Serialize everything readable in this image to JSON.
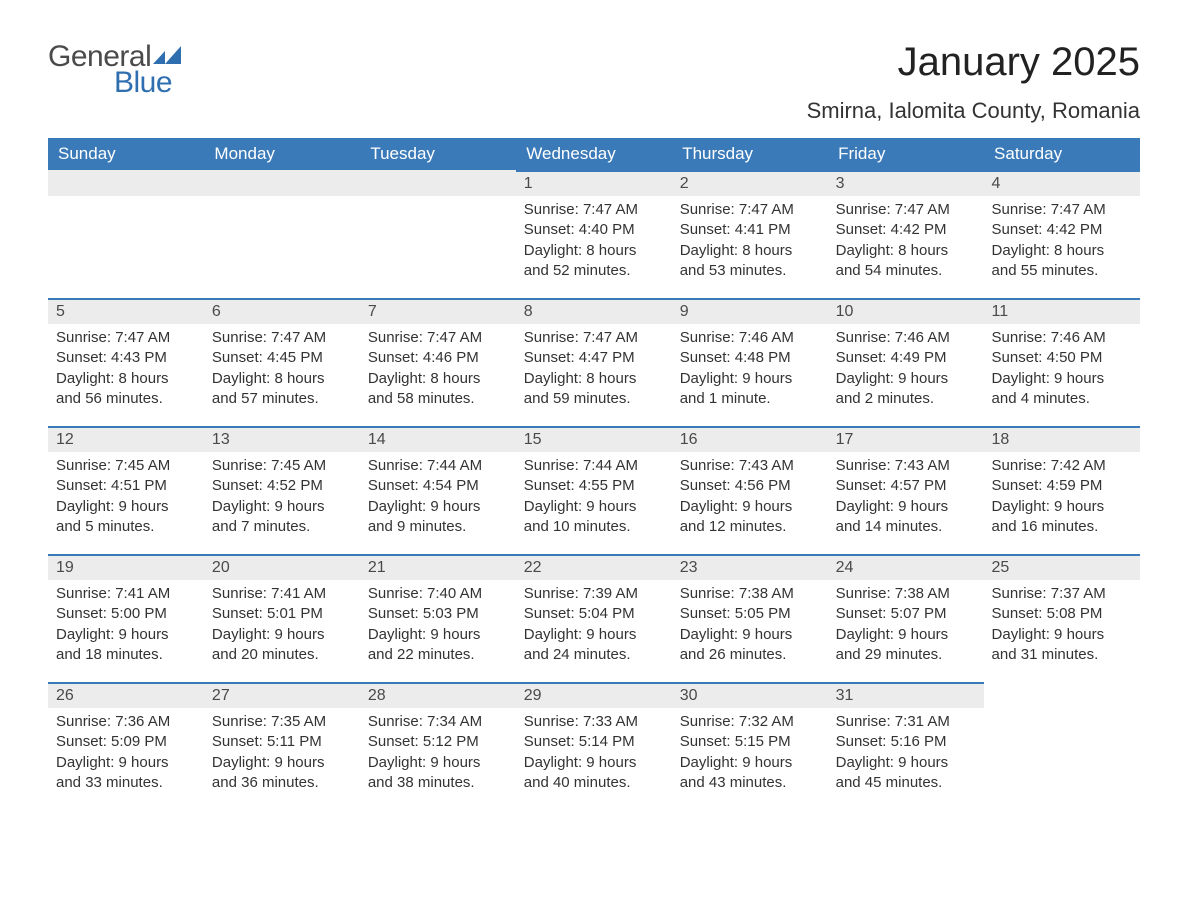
{
  "logo": {
    "word1": "General",
    "word2": "Blue",
    "word1_color": "#4a4a4a",
    "word2_color": "#2f6fb0",
    "flag_color": "#2f6fb0"
  },
  "title": "January 2025",
  "location": "Smirna, Ialomita County, Romania",
  "colors": {
    "header_bg": "#3a7ab8",
    "header_text": "#ffffff",
    "daynum_bg": "#ececec",
    "daynum_border": "#3a7ab8",
    "body_text": "#333333",
    "page_bg": "#ffffff"
  },
  "fonts": {
    "title_size_pt": 30,
    "location_size_pt": 16,
    "header_size_pt": 13,
    "body_size_pt": 11
  },
  "day_headers": [
    "Sunday",
    "Monday",
    "Tuesday",
    "Wednesday",
    "Thursday",
    "Friday",
    "Saturday"
  ],
  "weeks": [
    [
      null,
      null,
      null,
      {
        "n": "1",
        "sunrise": "Sunrise: 7:47 AM",
        "sunset": "Sunset: 4:40 PM",
        "dl1": "Daylight: 8 hours",
        "dl2": "and 52 minutes."
      },
      {
        "n": "2",
        "sunrise": "Sunrise: 7:47 AM",
        "sunset": "Sunset: 4:41 PM",
        "dl1": "Daylight: 8 hours",
        "dl2": "and 53 minutes."
      },
      {
        "n": "3",
        "sunrise": "Sunrise: 7:47 AM",
        "sunset": "Sunset: 4:42 PM",
        "dl1": "Daylight: 8 hours",
        "dl2": "and 54 minutes."
      },
      {
        "n": "4",
        "sunrise": "Sunrise: 7:47 AM",
        "sunset": "Sunset: 4:42 PM",
        "dl1": "Daylight: 8 hours",
        "dl2": "and 55 minutes."
      }
    ],
    [
      {
        "n": "5",
        "sunrise": "Sunrise: 7:47 AM",
        "sunset": "Sunset: 4:43 PM",
        "dl1": "Daylight: 8 hours",
        "dl2": "and 56 minutes."
      },
      {
        "n": "6",
        "sunrise": "Sunrise: 7:47 AM",
        "sunset": "Sunset: 4:45 PM",
        "dl1": "Daylight: 8 hours",
        "dl2": "and 57 minutes."
      },
      {
        "n": "7",
        "sunrise": "Sunrise: 7:47 AM",
        "sunset": "Sunset: 4:46 PM",
        "dl1": "Daylight: 8 hours",
        "dl2": "and 58 minutes."
      },
      {
        "n": "8",
        "sunrise": "Sunrise: 7:47 AM",
        "sunset": "Sunset: 4:47 PM",
        "dl1": "Daylight: 8 hours",
        "dl2": "and 59 minutes."
      },
      {
        "n": "9",
        "sunrise": "Sunrise: 7:46 AM",
        "sunset": "Sunset: 4:48 PM",
        "dl1": "Daylight: 9 hours",
        "dl2": "and 1 minute."
      },
      {
        "n": "10",
        "sunrise": "Sunrise: 7:46 AM",
        "sunset": "Sunset: 4:49 PM",
        "dl1": "Daylight: 9 hours",
        "dl2": "and 2 minutes."
      },
      {
        "n": "11",
        "sunrise": "Sunrise: 7:46 AM",
        "sunset": "Sunset: 4:50 PM",
        "dl1": "Daylight: 9 hours",
        "dl2": "and 4 minutes."
      }
    ],
    [
      {
        "n": "12",
        "sunrise": "Sunrise: 7:45 AM",
        "sunset": "Sunset: 4:51 PM",
        "dl1": "Daylight: 9 hours",
        "dl2": "and 5 minutes."
      },
      {
        "n": "13",
        "sunrise": "Sunrise: 7:45 AM",
        "sunset": "Sunset: 4:52 PM",
        "dl1": "Daylight: 9 hours",
        "dl2": "and 7 minutes."
      },
      {
        "n": "14",
        "sunrise": "Sunrise: 7:44 AM",
        "sunset": "Sunset: 4:54 PM",
        "dl1": "Daylight: 9 hours",
        "dl2": "and 9 minutes."
      },
      {
        "n": "15",
        "sunrise": "Sunrise: 7:44 AM",
        "sunset": "Sunset: 4:55 PM",
        "dl1": "Daylight: 9 hours",
        "dl2": "and 10 minutes."
      },
      {
        "n": "16",
        "sunrise": "Sunrise: 7:43 AM",
        "sunset": "Sunset: 4:56 PM",
        "dl1": "Daylight: 9 hours",
        "dl2": "and 12 minutes."
      },
      {
        "n": "17",
        "sunrise": "Sunrise: 7:43 AM",
        "sunset": "Sunset: 4:57 PM",
        "dl1": "Daylight: 9 hours",
        "dl2": "and 14 minutes."
      },
      {
        "n": "18",
        "sunrise": "Sunrise: 7:42 AM",
        "sunset": "Sunset: 4:59 PM",
        "dl1": "Daylight: 9 hours",
        "dl2": "and 16 minutes."
      }
    ],
    [
      {
        "n": "19",
        "sunrise": "Sunrise: 7:41 AM",
        "sunset": "Sunset: 5:00 PM",
        "dl1": "Daylight: 9 hours",
        "dl2": "and 18 minutes."
      },
      {
        "n": "20",
        "sunrise": "Sunrise: 7:41 AM",
        "sunset": "Sunset: 5:01 PM",
        "dl1": "Daylight: 9 hours",
        "dl2": "and 20 minutes."
      },
      {
        "n": "21",
        "sunrise": "Sunrise: 7:40 AM",
        "sunset": "Sunset: 5:03 PM",
        "dl1": "Daylight: 9 hours",
        "dl2": "and 22 minutes."
      },
      {
        "n": "22",
        "sunrise": "Sunrise: 7:39 AM",
        "sunset": "Sunset: 5:04 PM",
        "dl1": "Daylight: 9 hours",
        "dl2": "and 24 minutes."
      },
      {
        "n": "23",
        "sunrise": "Sunrise: 7:38 AM",
        "sunset": "Sunset: 5:05 PM",
        "dl1": "Daylight: 9 hours",
        "dl2": "and 26 minutes."
      },
      {
        "n": "24",
        "sunrise": "Sunrise: 7:38 AM",
        "sunset": "Sunset: 5:07 PM",
        "dl1": "Daylight: 9 hours",
        "dl2": "and 29 minutes."
      },
      {
        "n": "25",
        "sunrise": "Sunrise: 7:37 AM",
        "sunset": "Sunset: 5:08 PM",
        "dl1": "Daylight: 9 hours",
        "dl2": "and 31 minutes."
      }
    ],
    [
      {
        "n": "26",
        "sunrise": "Sunrise: 7:36 AM",
        "sunset": "Sunset: 5:09 PM",
        "dl1": "Daylight: 9 hours",
        "dl2": "and 33 minutes."
      },
      {
        "n": "27",
        "sunrise": "Sunrise: 7:35 AM",
        "sunset": "Sunset: 5:11 PM",
        "dl1": "Daylight: 9 hours",
        "dl2": "and 36 minutes."
      },
      {
        "n": "28",
        "sunrise": "Sunrise: 7:34 AM",
        "sunset": "Sunset: 5:12 PM",
        "dl1": "Daylight: 9 hours",
        "dl2": "and 38 minutes."
      },
      {
        "n": "29",
        "sunrise": "Sunrise: 7:33 AM",
        "sunset": "Sunset: 5:14 PM",
        "dl1": "Daylight: 9 hours",
        "dl2": "and 40 minutes."
      },
      {
        "n": "30",
        "sunrise": "Sunrise: 7:32 AM",
        "sunset": "Sunset: 5:15 PM",
        "dl1": "Daylight: 9 hours",
        "dl2": "and 43 minutes."
      },
      {
        "n": "31",
        "sunrise": "Sunrise: 7:31 AM",
        "sunset": "Sunset: 5:16 PM",
        "dl1": "Daylight: 9 hours",
        "dl2": "and 45 minutes."
      },
      null
    ]
  ]
}
